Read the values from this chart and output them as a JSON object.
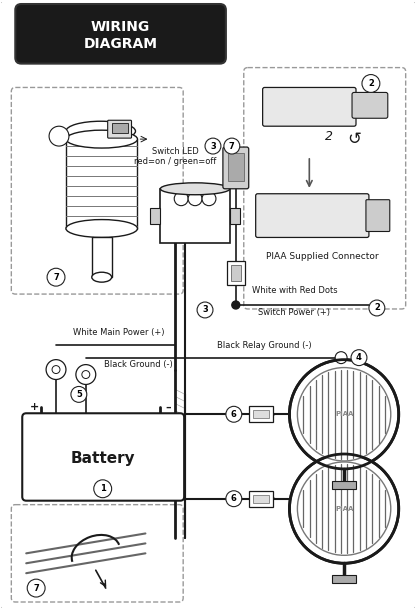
{
  "title": "WIRING\nDIAGRAM",
  "bg_color": "#f0f0f0",
  "white": "#ffffff",
  "black": "#000000",
  "dark": "#1a1a1a",
  "gray": "#888888",
  "lgray": "#cccccc",
  "dgray": "#555555",
  "labels": {
    "switch_led": "Switch LED\nred=on / green=off",
    "piaa_connector": "PIAA Supplied Connector",
    "white_main": "White Main Power (+)",
    "black_ground": "Black Ground (-)",
    "black_relay": "Black Relay Ground (-)",
    "white_red_dots": "White with Red Dots",
    "switch_power": "Switch Power (+)",
    "battery": "Battery"
  }
}
